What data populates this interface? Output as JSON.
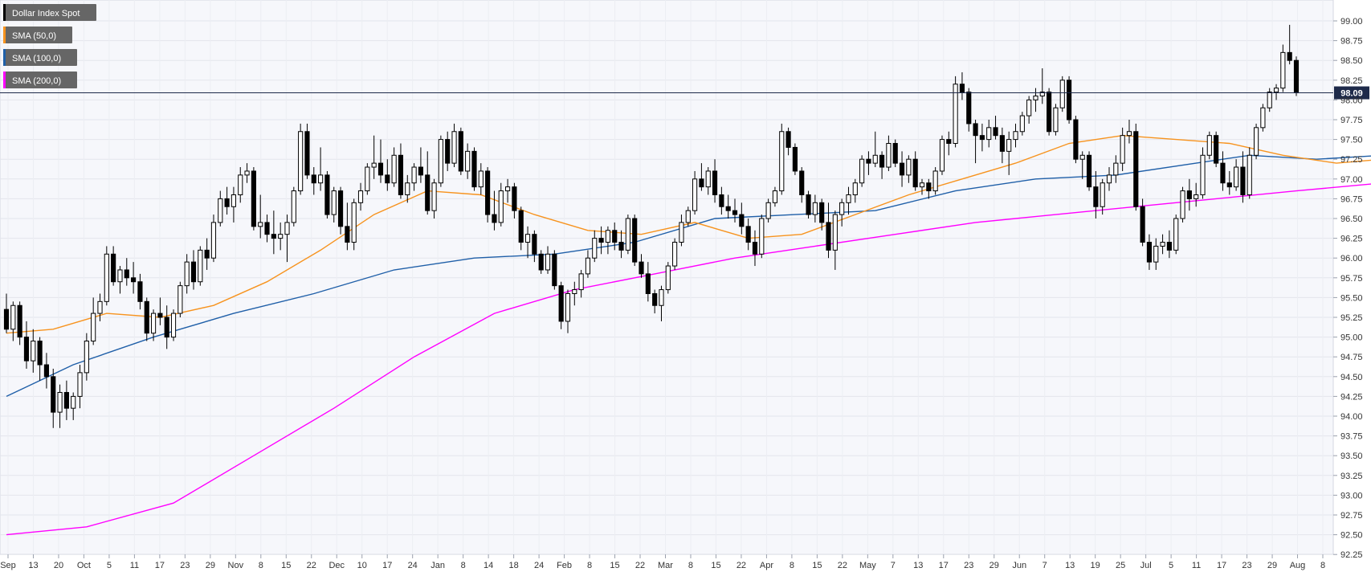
{
  "chart_data": {
    "type": "candlestick",
    "title": "Dollar Index Spot",
    "legend": [
      {
        "label": "Dollar Index Spot",
        "color": "#000000"
      },
      {
        "label": "SMA (50,0)",
        "color": "#f7931e"
      },
      {
        "label": "SMA (100,0)",
        "color": "#1f5fa8"
      },
      {
        "label": "SMA (200,0)",
        "color": "#ff00ff"
      }
    ],
    "legend_placement": "top-left",
    "ylim": [
      92.25,
      99.0
    ],
    "y_ticks": [
      "99.00",
      "98.75",
      "98.50",
      "98.25",
      "98.00",
      "97.75",
      "97.50",
      "97.25",
      "97.00",
      "96.75",
      "96.50",
      "96.25",
      "96.00",
      "95.75",
      "95.50",
      "95.25",
      "95.00",
      "94.75",
      "94.50",
      "94.25",
      "94.00",
      "93.75",
      "93.50",
      "93.25",
      "93.00",
      "92.75",
      "92.50",
      "92.25"
    ],
    "x_ticks": [
      "Sep",
      "13",
      "20",
      "Oct",
      "5",
      "11",
      "17",
      "23",
      "29",
      "Nov",
      "8",
      "15",
      "22",
      "Dec",
      "10",
      "17",
      "24",
      "Jan",
      "8",
      "14",
      "18",
      "24",
      "Feb",
      "8",
      "15",
      "22",
      "Mar",
      "8",
      "15",
      "22",
      "Apr",
      "8",
      "15",
      "22",
      "May",
      "7",
      "13",
      "17",
      "23",
      "29",
      "Jun",
      "7",
      "13",
      "19",
      "25",
      "Jul",
      "5",
      "11",
      "17",
      "23",
      "29",
      "Aug",
      "8"
    ],
    "last_price": 98.09,
    "last_price_label": "98.09",
    "grid": true,
    "candles": [
      [
        95.35,
        95.55,
        95.05,
        95.1
      ],
      [
        95.1,
        95.45,
        94.95,
        95.4
      ],
      [
        95.4,
        95.45,
        94.9,
        95.0
      ],
      [
        95.0,
        95.2,
        94.6,
        94.7
      ],
      [
        94.7,
        95.1,
        94.55,
        94.95
      ],
      [
        94.95,
        95.0,
        94.45,
        94.65
      ],
      [
        94.65,
        94.8,
        94.35,
        94.5
      ],
      [
        94.5,
        94.6,
        93.85,
        94.05
      ],
      [
        94.05,
        94.4,
        93.85,
        94.3
      ],
      [
        94.3,
        94.45,
        93.95,
        94.1
      ],
      [
        94.1,
        94.3,
        93.95,
        94.25
      ],
      [
        94.25,
        94.65,
        94.1,
        94.55
      ],
      [
        94.55,
        95.05,
        94.45,
        94.95
      ],
      [
        94.95,
        95.5,
        94.9,
        95.3
      ],
      [
        95.3,
        95.55,
        95.2,
        95.45
      ],
      [
        95.45,
        96.15,
        95.4,
        96.05
      ],
      [
        96.05,
        96.15,
        95.65,
        95.7
      ],
      [
        95.7,
        95.9,
        95.55,
        95.85
      ],
      [
        95.85,
        96.0,
        95.65,
        95.75
      ],
      [
        95.75,
        95.95,
        95.55,
        95.7
      ],
      [
        95.7,
        95.8,
        95.35,
        95.45
      ],
      [
        95.45,
        95.5,
        94.95,
        95.05
      ],
      [
        95.05,
        95.35,
        94.95,
        95.3
      ],
      [
        95.3,
        95.5,
        95.15,
        95.25
      ],
      [
        95.25,
        95.4,
        94.85,
        95.0
      ],
      [
        95.0,
        95.35,
        94.95,
        95.3
      ],
      [
        95.3,
        95.7,
        95.25,
        95.65
      ],
      [
        95.65,
        96.05,
        95.55,
        95.95
      ],
      [
        95.95,
        96.1,
        95.6,
        95.7
      ],
      [
        95.7,
        96.15,
        95.65,
        96.1
      ],
      [
        96.1,
        96.25,
        95.85,
        96.0
      ],
      [
        96.0,
        96.55,
        95.95,
        96.45
      ],
      [
        96.45,
        96.85,
        96.4,
        96.75
      ],
      [
        96.75,
        96.9,
        96.55,
        96.65
      ],
      [
        96.65,
        96.9,
        96.45,
        96.8
      ],
      [
        96.8,
        97.15,
        96.7,
        97.05
      ],
      [
        97.05,
        97.2,
        96.95,
        97.1
      ],
      [
        97.1,
        97.15,
        96.35,
        96.4
      ],
      [
        96.4,
        96.8,
        96.25,
        96.45
      ],
      [
        96.45,
        96.55,
        96.2,
        96.3
      ],
      [
        96.3,
        96.6,
        96.05,
        96.25
      ],
      [
        96.25,
        96.45,
        96.1,
        96.3
      ],
      [
        96.3,
        96.55,
        95.95,
        96.45
      ],
      [
        96.45,
        96.9,
        96.4,
        96.85
      ],
      [
        96.85,
        97.7,
        96.8,
        97.6
      ],
      [
        97.6,
        97.7,
        97.0,
        97.05
      ],
      [
        97.05,
        97.15,
        96.8,
        96.95
      ],
      [
        96.95,
        97.4,
        96.85,
        97.05
      ],
      [
        97.05,
        97.1,
        96.5,
        96.55
      ],
      [
        96.55,
        96.9,
        96.45,
        96.85
      ],
      [
        96.85,
        96.9,
        96.3,
        96.4
      ],
      [
        96.4,
        96.7,
        96.1,
        96.2
      ],
      [
        96.2,
        96.75,
        96.1,
        96.7
      ],
      [
        96.7,
        96.95,
        96.6,
        96.85
      ],
      [
        96.85,
        97.2,
        96.8,
        97.15
      ],
      [
        97.15,
        97.55,
        97.0,
        97.2
      ],
      [
        97.2,
        97.5,
        96.95,
        97.05
      ],
      [
        97.05,
        97.25,
        96.85,
        96.95
      ],
      [
        96.95,
        97.4,
        96.9,
        97.3
      ],
      [
        97.3,
        97.45,
        96.75,
        96.8
      ],
      [
        96.8,
        97.05,
        96.7,
        96.95
      ],
      [
        96.95,
        97.2,
        96.85,
        97.15
      ],
      [
        97.15,
        97.4,
        96.95,
        97.05
      ],
      [
        97.05,
        97.35,
        96.55,
        96.6
      ],
      [
        96.6,
        97.0,
        96.5,
        96.95
      ],
      [
        96.95,
        97.55,
        96.9,
        97.5
      ],
      [
        97.5,
        97.6,
        97.1,
        97.2
      ],
      [
        97.2,
        97.7,
        97.15,
        97.6
      ],
      [
        97.6,
        97.65,
        97.05,
        97.1
      ],
      [
        97.1,
        97.45,
        97.0,
        97.35
      ],
      [
        97.35,
        97.4,
        96.85,
        96.9
      ],
      [
        96.9,
        97.2,
        96.8,
        97.1
      ],
      [
        97.1,
        97.15,
        96.45,
        96.55
      ],
      [
        96.55,
        96.85,
        96.35,
        96.45
      ],
      [
        96.45,
        96.95,
        96.4,
        96.85
      ],
      [
        96.85,
        97.0,
        96.7,
        96.9
      ],
      [
        96.9,
        96.95,
        96.5,
        96.6
      ],
      [
        96.6,
        96.65,
        96.1,
        96.2
      ],
      [
        96.2,
        96.4,
        96.0,
        96.3
      ],
      [
        96.3,
        96.35,
        95.95,
        96.05
      ],
      [
        96.05,
        96.1,
        95.8,
        95.85
      ],
      [
        95.85,
        96.15,
        95.8,
        96.05
      ],
      [
        96.05,
        96.1,
        95.6,
        95.65
      ],
      [
        95.65,
        95.7,
        95.1,
        95.2
      ],
      [
        95.2,
        95.6,
        95.05,
        95.55
      ],
      [
        95.55,
        95.7,
        95.4,
        95.6
      ],
      [
        95.6,
        95.85,
        95.5,
        95.8
      ],
      [
        95.8,
        96.1,
        95.75,
        96.0
      ],
      [
        96.0,
        96.35,
        95.95,
        96.25
      ],
      [
        96.25,
        96.4,
        96.05,
        96.2
      ],
      [
        96.2,
        96.4,
        96.05,
        96.35
      ],
      [
        96.35,
        96.45,
        96.1,
        96.2
      ],
      [
        96.2,
        96.35,
        96.0,
        96.1
      ],
      [
        96.1,
        96.55,
        96.05,
        96.5
      ],
      [
        96.5,
        96.55,
        95.9,
        95.95
      ],
      [
        95.95,
        96.05,
        95.75,
        95.8
      ],
      [
        95.8,
        95.95,
        95.45,
        95.55
      ],
      [
        95.55,
        95.6,
        95.3,
        95.4
      ],
      [
        95.4,
        95.65,
        95.2,
        95.6
      ],
      [
        95.6,
        95.95,
        95.55,
        95.9
      ],
      [
        95.9,
        96.25,
        95.85,
        96.2
      ],
      [
        96.2,
        96.55,
        96.15,
        96.45
      ],
      [
        96.45,
        96.65,
        96.4,
        96.6
      ],
      [
        96.6,
        97.1,
        96.55,
        97.0
      ],
      [
        97.0,
        97.2,
        96.85,
        96.9
      ],
      [
        96.9,
        97.15,
        96.8,
        97.1
      ],
      [
        97.1,
        97.25,
        96.7,
        96.8
      ],
      [
        96.8,
        96.9,
        96.55,
        96.65
      ],
      [
        96.65,
        96.8,
        96.5,
        96.6
      ],
      [
        96.6,
        96.75,
        96.45,
        96.55
      ],
      [
        96.55,
        96.7,
        96.3,
        96.4
      ],
      [
        96.4,
        96.5,
        96.1,
        96.2
      ],
      [
        96.2,
        96.35,
        95.9,
        96.05
      ],
      [
        96.05,
        96.55,
        96.0,
        96.5
      ],
      [
        96.5,
        96.75,
        96.45,
        96.7
      ],
      [
        96.7,
        96.9,
        96.65,
        96.85
      ],
      [
        96.85,
        97.7,
        96.8,
        97.6
      ],
      [
        97.6,
        97.65,
        97.3,
        97.4
      ],
      [
        97.4,
        97.45,
        97.05,
        97.1
      ],
      [
        97.1,
        97.15,
        96.7,
        96.8
      ],
      [
        96.8,
        96.85,
        96.5,
        96.55
      ],
      [
        96.55,
        96.8,
        96.45,
        96.7
      ],
      [
        96.7,
        96.75,
        96.35,
        96.45
      ],
      [
        96.45,
        96.7,
        96.0,
        96.1
      ],
      [
        96.1,
        96.6,
        95.85,
        96.55
      ],
      [
        96.55,
        96.75,
        96.4,
        96.7
      ],
      [
        96.7,
        96.9,
        96.55,
        96.8
      ],
      [
        96.8,
        97.0,
        96.7,
        96.95
      ],
      [
        96.95,
        97.3,
        96.9,
        97.25
      ],
      [
        97.25,
        97.35,
        97.05,
        97.2
      ],
      [
        97.2,
        97.6,
        97.15,
        97.3
      ],
      [
        97.3,
        97.35,
        97.0,
        97.15
      ],
      [
        97.15,
        97.55,
        97.1,
        97.45
      ],
      [
        97.45,
        97.5,
        97.15,
        97.2
      ],
      [
        97.2,
        97.35,
        96.9,
        97.05
      ],
      [
        97.05,
        97.3,
        96.95,
        97.25
      ],
      [
        97.25,
        97.35,
        96.85,
        96.9
      ],
      [
        96.9,
        97.0,
        96.8,
        96.95
      ],
      [
        96.95,
        97.0,
        96.75,
        96.85
      ],
      [
        96.85,
        97.15,
        96.8,
        97.1
      ],
      [
        97.1,
        97.55,
        97.05,
        97.5
      ],
      [
        97.5,
        97.6,
        97.3,
        97.45
      ],
      [
        97.45,
        98.3,
        97.4,
        98.2
      ],
      [
        98.2,
        98.35,
        98.0,
        98.1
      ],
      [
        98.1,
        98.15,
        97.6,
        97.7
      ],
      [
        97.7,
        97.75,
        97.2,
        97.55
      ],
      [
        97.55,
        97.7,
        97.35,
        97.5
      ],
      [
        97.5,
        97.75,
        97.4,
        97.65
      ],
      [
        97.65,
        97.8,
        97.5,
        97.55
      ],
      [
        97.55,
        97.65,
        97.2,
        97.35
      ],
      [
        97.35,
        97.6,
        97.05,
        97.5
      ],
      [
        97.5,
        97.7,
        97.4,
        97.6
      ],
      [
        97.6,
        97.85,
        97.55,
        97.8
      ],
      [
        97.8,
        98.05,
        97.7,
        98.0
      ],
      [
        98.0,
        98.15,
        97.85,
        98.05
      ],
      [
        98.05,
        98.4,
        97.95,
        98.1
      ],
      [
        98.1,
        98.15,
        97.55,
        97.6
      ],
      [
        97.6,
        97.95,
        97.55,
        97.9
      ],
      [
        97.9,
        98.3,
        97.85,
        98.25
      ],
      [
        98.25,
        98.3,
        97.7,
        97.75
      ],
      [
        97.75,
        97.8,
        97.2,
        97.25
      ],
      [
        97.25,
        97.35,
        97.0,
        97.3
      ],
      [
        97.3,
        97.35,
        96.85,
        96.9
      ],
      [
        96.9,
        97.1,
        96.5,
        96.65
      ],
      [
        96.65,
        97.0,
        96.55,
        96.95
      ],
      [
        96.95,
        97.15,
        96.85,
        97.05
      ],
      [
        97.05,
        97.3,
        96.95,
        97.2
      ],
      [
        97.2,
        97.65,
        97.1,
        97.55
      ],
      [
        97.55,
        97.75,
        97.45,
        97.6
      ],
      [
        97.6,
        97.7,
        96.6,
        96.65
      ],
      [
        96.65,
        96.75,
        96.15,
        96.2
      ],
      [
        96.2,
        96.3,
        95.85,
        95.95
      ],
      [
        95.95,
        96.25,
        95.85,
        96.15
      ],
      [
        96.15,
        96.3,
        96.05,
        96.2
      ],
      [
        96.2,
        96.35,
        96.0,
        96.1
      ],
      [
        96.1,
        96.55,
        96.05,
        96.5
      ],
      [
        96.5,
        96.9,
        96.45,
        96.85
      ],
      [
        96.85,
        97.0,
        96.6,
        96.75
      ],
      [
        96.75,
        96.95,
        96.65,
        96.8
      ],
      [
        96.8,
        97.4,
        96.75,
        97.3
      ],
      [
        97.3,
        97.6,
        97.25,
        97.55
      ],
      [
        97.55,
        97.6,
        97.15,
        97.2
      ],
      [
        97.2,
        97.35,
        96.85,
        96.95
      ],
      [
        96.95,
        97.1,
        96.8,
        96.9
      ],
      [
        96.9,
        97.25,
        96.85,
        97.15
      ],
      [
        97.15,
        97.35,
        96.7,
        96.8
      ],
      [
        96.8,
        97.4,
        96.75,
        97.3
      ],
      [
        97.3,
        97.7,
        97.25,
        97.65
      ],
      [
        97.65,
        97.95,
        97.6,
        97.9
      ],
      [
        97.9,
        98.15,
        97.85,
        98.1
      ],
      [
        98.1,
        98.2,
        98.0,
        98.15
      ],
      [
        98.15,
        98.7,
        98.1,
        98.6
      ],
      [
        98.6,
        98.95,
        98.45,
        98.5
      ],
      [
        98.5,
        98.55,
        98.05,
        98.09
      ]
    ],
    "sma50": [
      [
        0,
        95.05
      ],
      [
        7,
        95.1
      ],
      [
        15,
        95.3
      ],
      [
        23,
        95.25
      ],
      [
        31,
        95.4
      ],
      [
        39,
        95.7
      ],
      [
        47,
        96.1
      ],
      [
        55,
        96.55
      ],
      [
        63,
        96.85
      ],
      [
        71,
        96.8
      ],
      [
        79,
        96.55
      ],
      [
        87,
        96.35
      ],
      [
        95,
        96.3
      ],
      [
        103,
        96.45
      ],
      [
        111,
        96.25
      ],
      [
        119,
        96.3
      ],
      [
        127,
        96.55
      ],
      [
        135,
        96.8
      ],
      [
        143,
        97.0
      ],
      [
        151,
        97.2
      ],
      [
        159,
        97.45
      ],
      [
        167,
        97.55
      ],
      [
        175,
        97.5
      ],
      [
        183,
        97.45
      ],
      [
        191,
        97.3
      ],
      [
        199,
        97.2
      ],
      [
        206,
        97.25
      ]
    ],
    "sma100": [
      [
        0,
        94.25
      ],
      [
        10,
        94.65
      ],
      [
        22,
        95.0
      ],
      [
        34,
        95.3
      ],
      [
        46,
        95.55
      ],
      [
        58,
        95.85
      ],
      [
        70,
        96.0
      ],
      [
        82,
        96.05
      ],
      [
        94,
        96.2
      ],
      [
        106,
        96.5
      ],
      [
        118,
        96.55
      ],
      [
        130,
        96.6
      ],
      [
        142,
        96.85
      ],
      [
        154,
        97.0
      ],
      [
        166,
        97.05
      ],
      [
        178,
        97.2
      ],
      [
        186,
        97.3
      ],
      [
        196,
        97.25
      ],
      [
        206,
        97.3
      ]
    ],
    "sma200": [
      [
        0,
        92.5
      ],
      [
        12,
        92.6
      ],
      [
        25,
        92.9
      ],
      [
        37,
        93.5
      ],
      [
        49,
        94.1
      ],
      [
        61,
        94.75
      ],
      [
        73,
        95.3
      ],
      [
        85,
        95.6
      ],
      [
        97,
        95.8
      ],
      [
        109,
        96.0
      ],
      [
        121,
        96.15
      ],
      [
        133,
        96.3
      ],
      [
        145,
        96.45
      ],
      [
        157,
        96.55
      ],
      [
        169,
        96.65
      ],
      [
        181,
        96.75
      ],
      [
        193,
        96.85
      ],
      [
        206,
        96.95
      ]
    ]
  }
}
